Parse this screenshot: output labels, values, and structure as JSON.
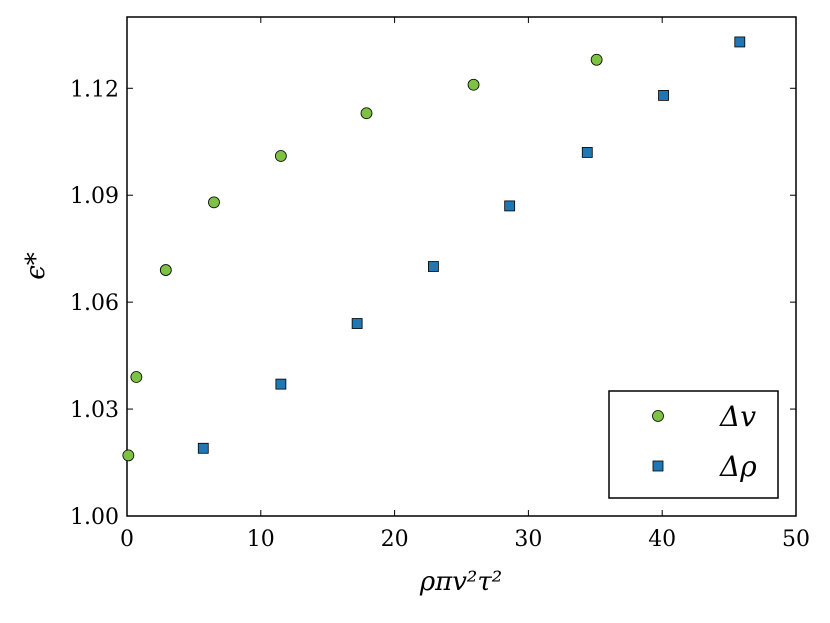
{
  "chart_data": {
    "type": "scatter",
    "xlabel": "ρπv²τ²",
    "ylabel": "ϵ*",
    "xlim": [
      0,
      50
    ],
    "ylim": [
      1.0,
      1.14
    ],
    "xticks": [
      0,
      10,
      20,
      30,
      40,
      50
    ],
    "xtick_labels": [
      "0",
      "10",
      "20",
      "30",
      "40",
      "50"
    ],
    "yticks": [
      1.0,
      1.03,
      1.06,
      1.09,
      1.12
    ],
    "ytick_labels": [
      "1.00",
      "1.03",
      "1.06",
      "1.09",
      "1.12"
    ],
    "grid": false,
    "legend_position": "bottom-right",
    "series": [
      {
        "name": "Δv",
        "marker": "circle",
        "color": "#7dc242",
        "points": [
          {
            "x": 0.1,
            "y": 1.017
          },
          {
            "x": 0.7,
            "y": 1.039
          },
          {
            "x": 2.9,
            "y": 1.069
          },
          {
            "x": 6.5,
            "y": 1.088
          },
          {
            "x": 11.5,
            "y": 1.101
          },
          {
            "x": 17.9,
            "y": 1.113
          },
          {
            "x": 25.9,
            "y": 1.121
          },
          {
            "x": 35.1,
            "y": 1.128
          }
        ]
      },
      {
        "name": "Δρ",
        "marker": "square",
        "color": "#1f78b4",
        "points": [
          {
            "x": 5.7,
            "y": 1.019
          },
          {
            "x": 11.5,
            "y": 1.037
          },
          {
            "x": 17.2,
            "y": 1.054
          },
          {
            "x": 22.9,
            "y": 1.07
          },
          {
            "x": 28.6,
            "y": 1.087
          },
          {
            "x": 34.4,
            "y": 1.102
          },
          {
            "x": 40.1,
            "y": 1.118
          },
          {
            "x": 45.8,
            "y": 1.133
          }
        ]
      }
    ]
  }
}
